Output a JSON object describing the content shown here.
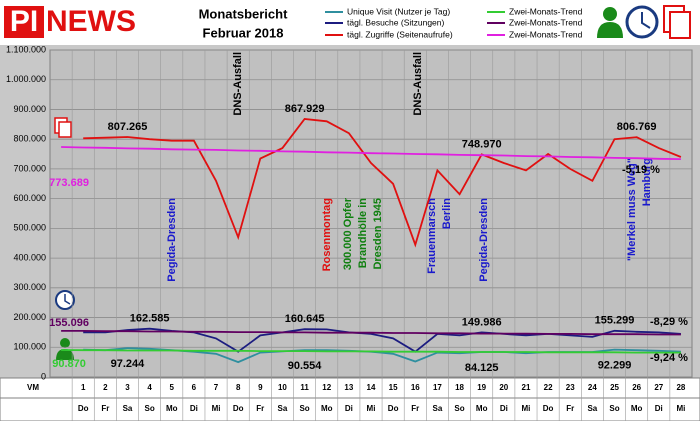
{
  "header": {
    "logo_a": "PI",
    "logo_b": "NEWS",
    "title_lines": [
      "Monatsbericht",
      "Februar 2018"
    ]
  },
  "chart_data": {
    "type": "line",
    "categories": [
      "VM",
      "1",
      "2",
      "3",
      "4",
      "5",
      "6",
      "7",
      "8",
      "9",
      "10",
      "11",
      "12",
      "13",
      "14",
      "15",
      "16",
      "17",
      "18",
      "19",
      "20",
      "21",
      "22",
      "23",
      "24",
      "25",
      "26",
      "27",
      "28"
    ],
    "weekdays": [
      null,
      "Do",
      "Fr",
      "Sa",
      "So",
      "Mo",
      "Di",
      "Mi",
      "Do",
      "Fr",
      "Sa",
      "So",
      "Mo",
      "Di",
      "Mi",
      "Do",
      "Fr",
      "Sa",
      "So",
      "Mo",
      "Di",
      "Mi",
      "Do",
      "Fr",
      "Sa",
      "So",
      "Mo",
      "Di",
      "Mi"
    ],
    "ylim": [
      0,
      1100000
    ],
    "yticks": [
      0,
      {
        "value": 100000,
        "label": "100.000"
      },
      {
        "value": 200000,
        "label": "200.000"
      },
      {
        "value": 300000,
        "label": "300.000"
      },
      {
        "value": 400000,
        "label": "400.000"
      },
      {
        "value": 500000,
        "label": "500.000"
      },
      {
        "value": 600000,
        "label": "600.000"
      },
      {
        "value": 700000,
        "label": "700.000"
      },
      {
        "value": 800000,
        "label": "800.000"
      },
      {
        "value": 900000,
        "label": "900.000"
      },
      {
        "value": 1000000,
        "label": "1.000.000"
      },
      {
        "value": 1100000,
        "label": "1.100.000"
      }
    ],
    "grid": true,
    "series": [
      {
        "name": "Unique Visit (Nutzer je Tag)",
        "color": "#2f8f9f",
        "values": [
          null,
          92000,
          90000,
          97244,
          95000,
          90000,
          85000,
          78000,
          50000,
          82000,
          86000,
          90554,
          90000,
          88000,
          85000,
          78000,
          52000,
          82000,
          80000,
          84125,
          84000,
          80000,
          84000,
          84000,
          84000,
          92299,
          90000,
          88000,
          85000
        ],
        "value_labels": [
          null,
          null,
          null,
          "97.244",
          null,
          null,
          null,
          null,
          null,
          null,
          null,
          "90.554",
          null,
          null,
          null,
          null,
          null,
          null,
          null,
          "84.125",
          null,
          null,
          null,
          null,
          null,
          "92.299",
          null,
          null,
          null
        ]
      },
      {
        "name": "tägl. Besuche (Sitzungen)",
        "color": "#1c1c80",
        "values": [
          null,
          150000,
          150000,
          158000,
          162585,
          155000,
          150000,
          130000,
          85000,
          140000,
          150000,
          160645,
          160000,
          150000,
          145000,
          130000,
          85000,
          145000,
          140000,
          149986,
          145000,
          140000,
          145000,
          140000,
          135000,
          155299,
          152000,
          150000,
          145000
        ],
        "value_labels": [
          null,
          null,
          null,
          null,
          "162.585",
          null,
          null,
          null,
          null,
          null,
          null,
          "160.645",
          null,
          null,
          null,
          null,
          null,
          null,
          null,
          "149.986",
          null,
          null,
          null,
          null,
          null,
          "155.299",
          null,
          null,
          null
        ]
      },
      {
        "name": "tägl. Zugriffe (Seitenaufrufe)",
        "color": "#e01010",
        "values": [
          null,
          803000,
          805000,
          807265,
          800000,
          795000,
          795000,
          660000,
          470000,
          735000,
          770000,
          867929,
          860000,
          820000,
          720000,
          650000,
          445000,
          695000,
          615000,
          748970,
          720000,
          695000,
          750000,
          700000,
          660000,
          800000,
          806769,
          770000,
          740000
        ],
        "value_labels": [
          null,
          null,
          null,
          "807.265",
          null,
          null,
          null,
          null,
          null,
          null,
          null,
          "867.929",
          null,
          null,
          null,
          null,
          null,
          null,
          null,
          "748.970",
          null,
          null,
          null,
          null,
          null,
          null,
          "806.769",
          null,
          null
        ]
      },
      {
        "name": "Zwei-Monats-Trend",
        "color": "#33cc33",
        "values": [
          90870,
          90000,
          90000,
          89000,
          89000,
          89000,
          88000,
          88000,
          88000,
          87000,
          87000,
          87000,
          86000,
          86000,
          86000,
          85000,
          85000,
          85000,
          84000,
          84000,
          84000,
          84000,
          83000,
          83000,
          83000,
          83000,
          82000,
          82000,
          82000
        ],
        "value_labels": [
          "90.870",
          null,
          null,
          null,
          null,
          null,
          null,
          null,
          null,
          null,
          null,
          null,
          null,
          null,
          null,
          null,
          null,
          null,
          null,
          null,
          null,
          null,
          null,
          null,
          null,
          null,
          null,
          null,
          null
        ],
        "change": "-9,24 %"
      },
      {
        "name": "Zwei-Monats-Trend",
        "color": "#600060",
        "values": [
          155096,
          155000,
          154000,
          154000,
          153000,
          153000,
          152000,
          152000,
          151000,
          151000,
          150000,
          150000,
          149000,
          149000,
          149000,
          148000,
          148000,
          147000,
          147000,
          146000,
          146000,
          146000,
          145000,
          145000,
          144000,
          144000,
          144000,
          143000,
          143000
        ],
        "value_labels": [
          "155.096",
          null,
          null,
          null,
          null,
          null,
          null,
          null,
          null,
          null,
          null,
          null,
          null,
          null,
          null,
          null,
          null,
          null,
          null,
          null,
          null,
          null,
          null,
          null,
          null,
          null,
          null,
          null,
          null
        ],
        "change": "-8,29 %"
      },
      {
        "name": "Zwei-Monats-Trend",
        "color": "#e020e0",
        "values": [
          773689,
          772000,
          771000,
          769000,
          768000,
          766000,
          765000,
          764000,
          762000,
          761000,
          759000,
          758000,
          756000,
          755000,
          753000,
          752000,
          750000,
          749000,
          747000,
          746000,
          745000,
          743000,
          742000,
          740000,
          739000,
          737000,
          736000,
          734000,
          733000
        ],
        "value_labels": [
          "773.689",
          null,
          null,
          null,
          null,
          null,
          null,
          null,
          null,
          null,
          null,
          null,
          null,
          null,
          null,
          null,
          null,
          null,
          null,
          null,
          null,
          null,
          null,
          null,
          null,
          null,
          null,
          null,
          null
        ],
        "change": "-5,19 %"
      }
    ],
    "annotations": [
      {
        "lines": [
          "DNS-Ausfall"
        ],
        "color": "#000000"
      },
      {
        "lines": [
          "Pegida-Dresden"
        ],
        "color": "#1a1acc"
      },
      {
        "lines": [
          "Rosenmontag"
        ],
        "color": "#e01010"
      },
      {
        "lines": [
          "300.000 Opfer",
          "Brandhölle in",
          "Dresden 1945"
        ],
        "color": "#108010"
      },
      {
        "lines": [
          "DNS-Ausfall"
        ],
        "color": "#000000"
      },
      {
        "lines": [
          "Frauenmarsch",
          "Berlin"
        ],
        "color": "#1a1acc"
      },
      {
        "lines": [
          "Pegida-Dresden"
        ],
        "color": "#1a1acc"
      },
      {
        "lines": [
          "\"Merkel muss Weg\"",
          "Hamburg"
        ],
        "color": "#1a1acc"
      }
    ]
  }
}
